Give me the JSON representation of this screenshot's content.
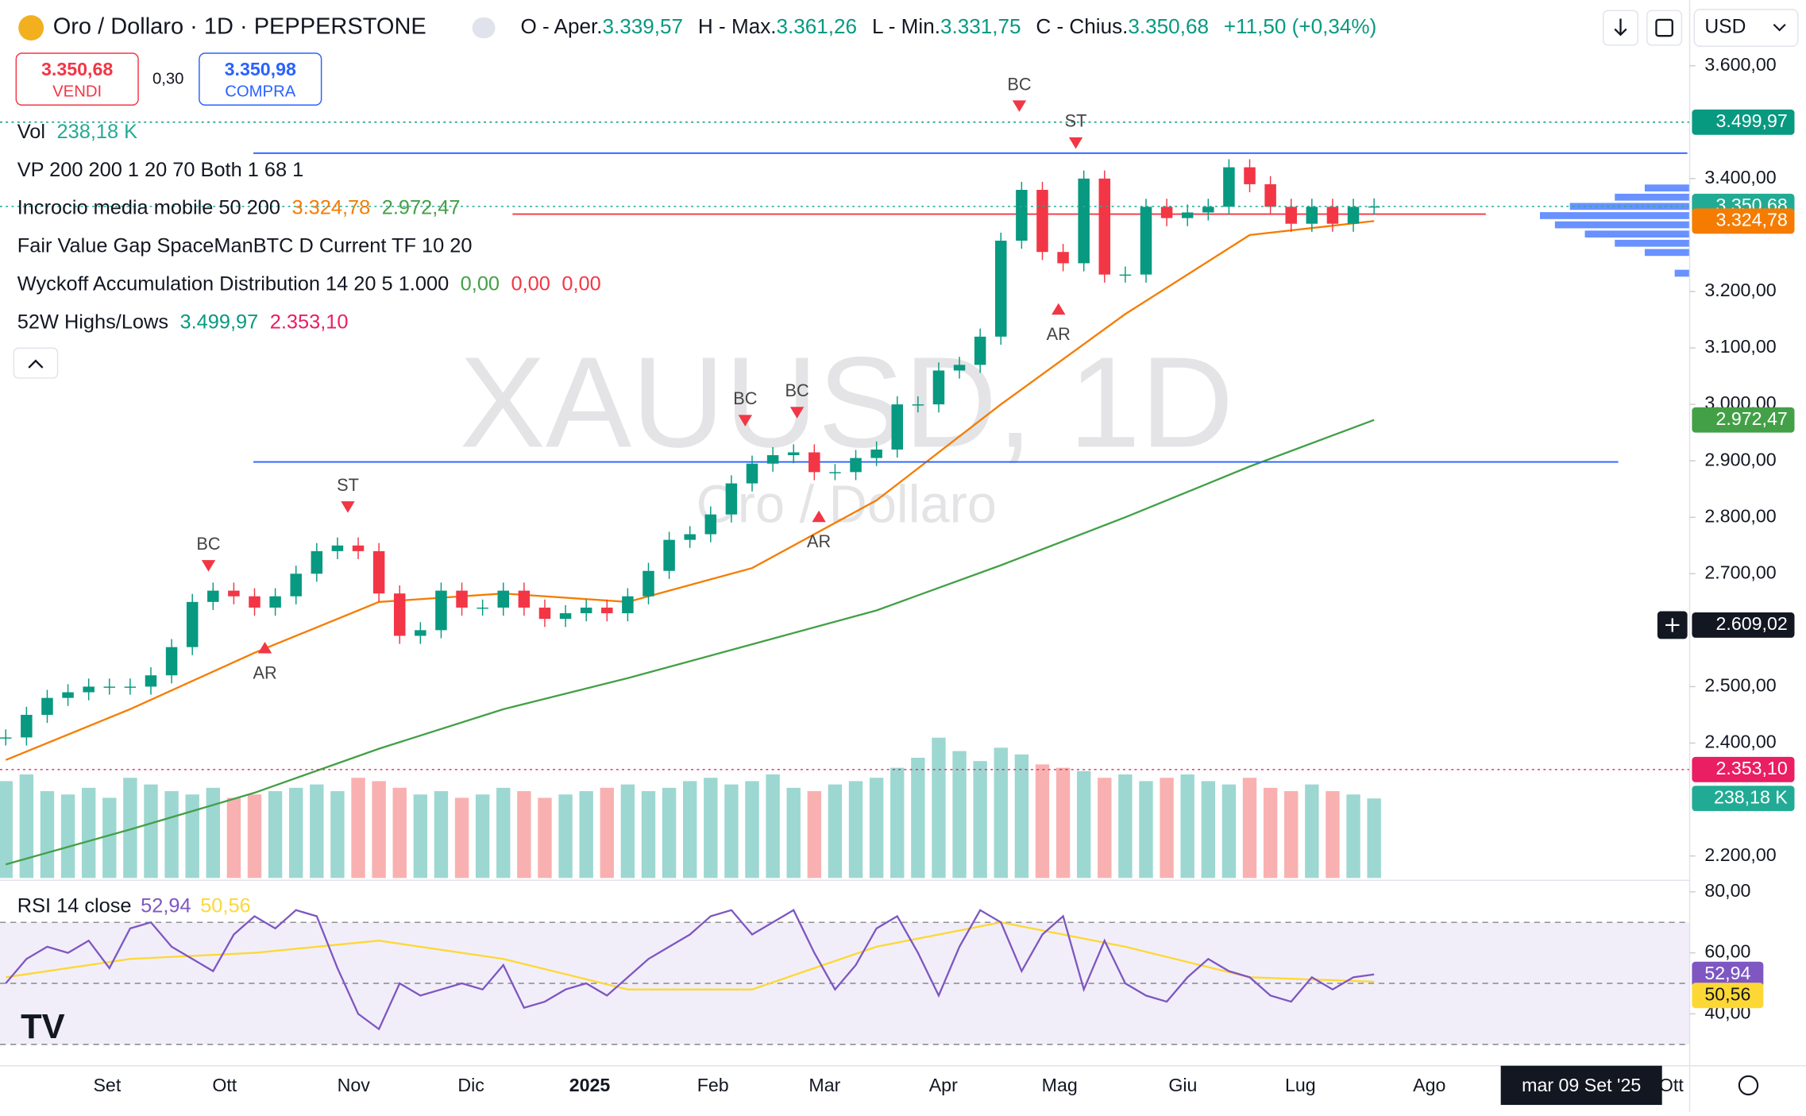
{
  "header": {
    "symbol": "Oro / Dollaro · 1D · PEPPERSTONE",
    "ohlc": [
      {
        "label": "O - Aper.",
        "value": "3.339,57"
      },
      {
        "label": "H - Max.",
        "value": "3.361,26"
      },
      {
        "label": "L - Min.",
        "value": "3.331,75"
      },
      {
        "label": "C - Chius.",
        "value": "3.350,68"
      }
    ],
    "change": "+11,50 (+0,34%)",
    "currency": "USD"
  },
  "trade": {
    "sell_price": "3.350,68",
    "sell_label": "VENDI",
    "spread": "0,30",
    "buy_price": "3.350,98",
    "buy_label": "COMPRA"
  },
  "indicators": [
    {
      "name": "Vol",
      "values": [
        "238,18 K"
      ]
    },
    {
      "name": "VP 200 200 1 20 70 Both 1 68 1",
      "values": []
    },
    {
      "name": "Incrocio media mobile 50 200",
      "values": [
        "3.324,78",
        "2.972,47"
      ]
    },
    {
      "name": "Fair Value Gap SpaceManBTC D Current TF 10 20",
      "values": []
    },
    {
      "name": "Wyckoff Accumulation Distribution 14 20 5 1.000",
      "values": [
        "0,00",
        "0,00",
        "0,00"
      ]
    },
    {
      "name": "52W Highs/Lows",
      "values": [
        "3.499,97",
        "2.353,10"
      ]
    }
  ],
  "watermark": {
    "title": "XAUUSD, 1D",
    "subtitle": "Oro / Dollaro"
  },
  "chart": {
    "type": "candlestick",
    "ylim": [
      2161,
      3716
    ],
    "yticks": [
      {
        "value": 3600,
        "label": "3.600,00"
      },
      {
        "value": 3400,
        "label": "3.400,00"
      },
      {
        "value": 3200,
        "label": "3.200,00"
      },
      {
        "value": 3100,
        "label": "3.100,00"
      },
      {
        "value": 3000,
        "label": "3.000,00"
      },
      {
        "value": 2900,
        "label": "2.900,00"
      },
      {
        "value": 2800,
        "label": "2.800,00"
      },
      {
        "value": 2700,
        "label": "2.700,00"
      },
      {
        "value": 2500,
        "label": "2.500,00"
      },
      {
        "value": 2400,
        "label": "2.400,00"
      },
      {
        "value": 2200,
        "label": "2.200,00"
      }
    ],
    "closes": [
      2410,
      2450,
      2480,
      2490,
      2500,
      2500,
      2500,
      2520,
      2570,
      2650,
      2670,
      2660,
      2640,
      2660,
      2700,
      2740,
      2750,
      2740,
      2665,
      2590,
      2600,
      2670,
      2640,
      2640,
      2670,
      2640,
      2620,
      2630,
      2640,
      2630,
      2660,
      2705,
      2760,
      2770,
      2805,
      2860,
      2895,
      2910,
      2915,
      2880,
      2880,
      2905,
      2920,
      3000,
      3000,
      3060,
      3070,
      3120,
      3290,
      3380,
      3270,
      3250,
      3400,
      3230,
      3230,
      3350,
      3330,
      3340,
      3350,
      3420,
      3390,
      3350,
      3320,
      3350,
      3320,
      3350,
      3350.68
    ],
    "ma50": {
      "color": "#f57c00",
      "values": [
        2370,
        2460,
        2560,
        2650,
        2665,
        2650,
        2710,
        2830,
        3000,
        3160,
        3300,
        3324.78
      ]
    },
    "ma200": {
      "color": "#43a047",
      "values": [
        2185,
        2247,
        2312,
        2390,
        2460,
        2515,
        2575,
        2635,
        2715,
        2800,
        2890,
        2972.47
      ]
    },
    "volume": {
      "ylim": [
        0,
        2628
      ],
      "values": [
        290,
        310,
        260,
        250,
        270,
        240,
        300,
        280,
        260,
        250,
        270,
        240,
        250,
        260,
        270,
        280,
        260,
        300,
        290,
        270,
        250,
        260,
        240,
        250,
        270,
        260,
        240,
        250,
        260,
        270,
        280,
        260,
        270,
        290,
        300,
        280,
        290,
        310,
        270,
        260,
        280,
        290,
        300,
        330,
        360,
        420,
        380,
        350,
        390,
        370,
        340,
        330,
        320,
        300,
        310,
        290,
        300,
        310,
        290,
        280,
        300,
        270,
        260,
        280,
        260,
        250,
        238.18
      ],
      "last_label": "238,18 K"
    },
    "levels": [
      {
        "value": 3445,
        "color": "#2962ff"
      },
      {
        "value": 2898,
        "color": "#2962ff"
      },
      {
        "value": 3337,
        "color": "#f23645"
      }
    ],
    "badges": [
      {
        "value": 3499.97,
        "label": "3.499,97",
        "color": "#089981"
      },
      {
        "value": 3350.68,
        "label": "3.350,68",
        "color": "#22ab94"
      },
      {
        "value": 3324.78,
        "label": "3.324,78",
        "color": "#f57c00"
      },
      {
        "value": 2972.47,
        "label": "2.972,47",
        "color": "#43a047"
      },
      {
        "value": 2609.02,
        "label": "2.609,02",
        "color": "#131722"
      },
      {
        "value": 2353.1,
        "label": "2.353,10",
        "color": "#e91e63"
      }
    ],
    "annotations": [
      "BC",
      "ST",
      "AR",
      "BC",
      "BC",
      "AR",
      "ST",
      "BC",
      "AR"
    ],
    "time_labels": [
      "Set",
      "Ott",
      "Nov",
      "Dic",
      "2025",
      "Feb",
      "Mar",
      "Apr",
      "Mag",
      "Giu",
      "Lug",
      "Ago",
      "Ott"
    ],
    "crosshair_date": "mar 09 Set '25"
  },
  "rsi": {
    "title": "RSI 14 close",
    "value_label": "52,94",
    "signal_label": "50,56",
    "ylim": [
      23,
      83.4
    ],
    "yticks": [
      {
        "value": 80,
        "label": "80,00"
      },
      {
        "value": 60,
        "label": "60,00"
      },
      {
        "value": 40,
        "label": "40,00"
      }
    ],
    "values": [
      50,
      58,
      62,
      60,
      64,
      55,
      68,
      70,
      62,
      58,
      54,
      66,
      72,
      68,
      74,
      72,
      55,
      40,
      35,
      50,
      46,
      48,
      50,
      48,
      56,
      42,
      44,
      48,
      50,
      46,
      52,
      58,
      62,
      66,
      72,
      74,
      66,
      70,
      74,
      60,
      48,
      56,
      68,
      72,
      60,
      46,
      62,
      74,
      70,
      54,
      66,
      72,
      48,
      64,
      50,
      46,
      44,
      52,
      58,
      54,
      52,
      46,
      44,
      52,
      48,
      52,
      52.94
    ],
    "signal": [
      52,
      58,
      60,
      64,
      58,
      48,
      48,
      62,
      70,
      62,
      52,
      50.56
    ],
    "color": "#7e57c2",
    "signal_color": "#fdd835"
  }
}
